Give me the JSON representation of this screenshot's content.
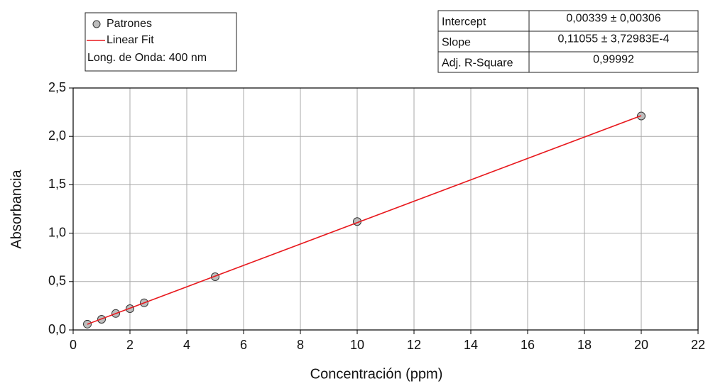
{
  "chart_data": {
    "type": "scatter",
    "x_label": "Concentración (ppm)",
    "y_label": "Absorbancia",
    "xlim": [
      0,
      22
    ],
    "ylim": [
      0,
      2.5
    ],
    "xticks": [
      0,
      2,
      4,
      6,
      8,
      10,
      12,
      14,
      16,
      18,
      20,
      22
    ],
    "yticks": [
      {
        "value": 0,
        "label": "0,0"
      },
      {
        "value": 0.5,
        "label": "0,5"
      },
      {
        "value": 1,
        "label": "1,0"
      },
      {
        "value": 1.5,
        "label": "1,5"
      },
      {
        "value": 2,
        "label": "2,0"
      },
      {
        "value": 2.5,
        "label": "2,5"
      }
    ],
    "grid": true,
    "series": [
      {
        "name": "Patrones",
        "type": "scatter",
        "color": "#bdbdbd",
        "x": [
          0.5,
          1,
          1.5,
          2,
          2.5,
          5,
          10,
          20
        ],
        "values": [
          0.06,
          0.11,
          0.17,
          0.22,
          0.28,
          0.55,
          1.12,
          2.21
        ]
      },
      {
        "name": "Linear Fit",
        "type": "line",
        "color": "#e8191e",
        "x": [
          0.5,
          20
        ],
        "values": [
          0.059,
          2.214
        ]
      }
    ],
    "legend_note": "Long. de Onda: 400 nm",
    "fit_table": {
      "rows": [
        [
          "Intercept",
          "0,00339 ± 0,00306"
        ],
        [
          "Slope",
          "0,11055 ± 3,72983E-4"
        ],
        [
          "Adj. R-Square",
          "0,99992"
        ]
      ]
    }
  }
}
